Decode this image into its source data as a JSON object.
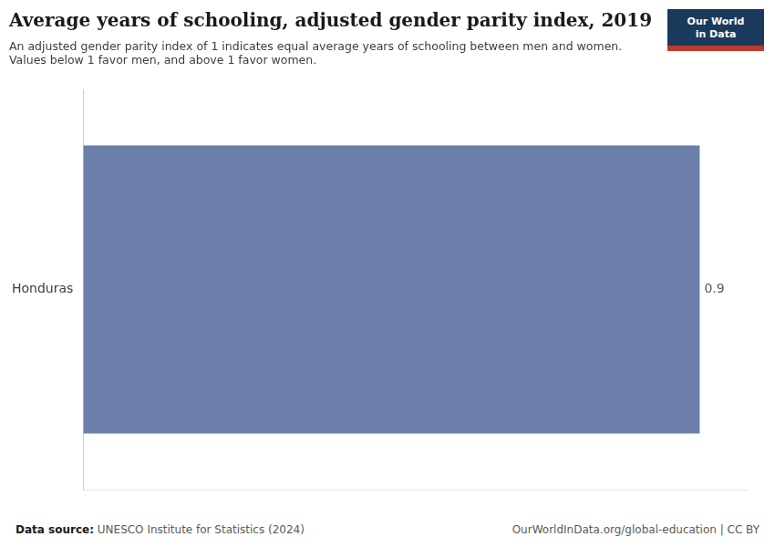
{
  "chart_data": {
    "type": "bar",
    "orientation": "horizontal",
    "title": "Average years of schooling, adjusted gender parity index, 2019",
    "subtitle": [
      "An adjusted gender parity index of 1 indicates equal average years of schooling between men and women.",
      "Values below 1 favor men, and above 1 favor women."
    ],
    "categories": [
      "Honduras"
    ],
    "values": [
      0.9
    ],
    "color": "#6b7faa",
    "xlim": [
      0,
      0.97
    ],
    "tick_labels": "y",
    "grid": false,
    "data_labels": true,
    "annotations": [
      "Data source:",
      "UNESCO Institute for Statistics (2024)",
      "OurWorldInData.org/global-education | CC BY",
      "Our World",
      "in Data"
    ]
  }
}
